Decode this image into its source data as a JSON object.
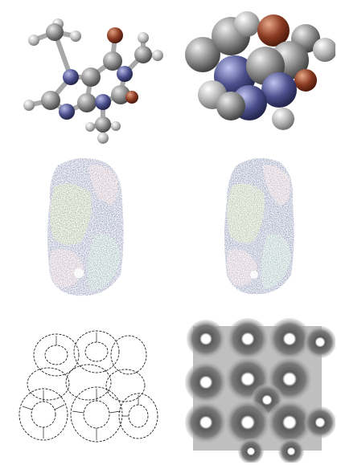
{
  "figure": {
    "panels": [
      {
        "id": "ball-and-stick",
        "depicts": "small-molecule-ball-and-stick-icon"
      },
      {
        "id": "space-filling",
        "depicts": "small-molecule-space-filling-icon"
      },
      {
        "id": "cartoon-shaded",
        "depicts": "protein-complex-shaded-icon"
      },
      {
        "id": "cartoon-outlined",
        "depicts": "protein-complex-outlined-icon"
      },
      {
        "id": "line-drawing",
        "depicts": "ring-assembly-line-drawing-icon"
      },
      {
        "id": "grayscale-surface",
        "depicts": "ring-assembly-surface-icon"
      }
    ],
    "colors": {
      "carbon": "#8a8a8a",
      "nitrogen": "#4a4f8c",
      "oxygen": "#8a3a22",
      "hydrogen": "#cfcfcf",
      "protein_green": "#8fa27a",
      "protein_blue": "#6f7aa3",
      "protein_pink": "#b49aaa",
      "protein_teal": "#7fa3a0",
      "surface_gray": "#7a7a7a"
    }
  }
}
